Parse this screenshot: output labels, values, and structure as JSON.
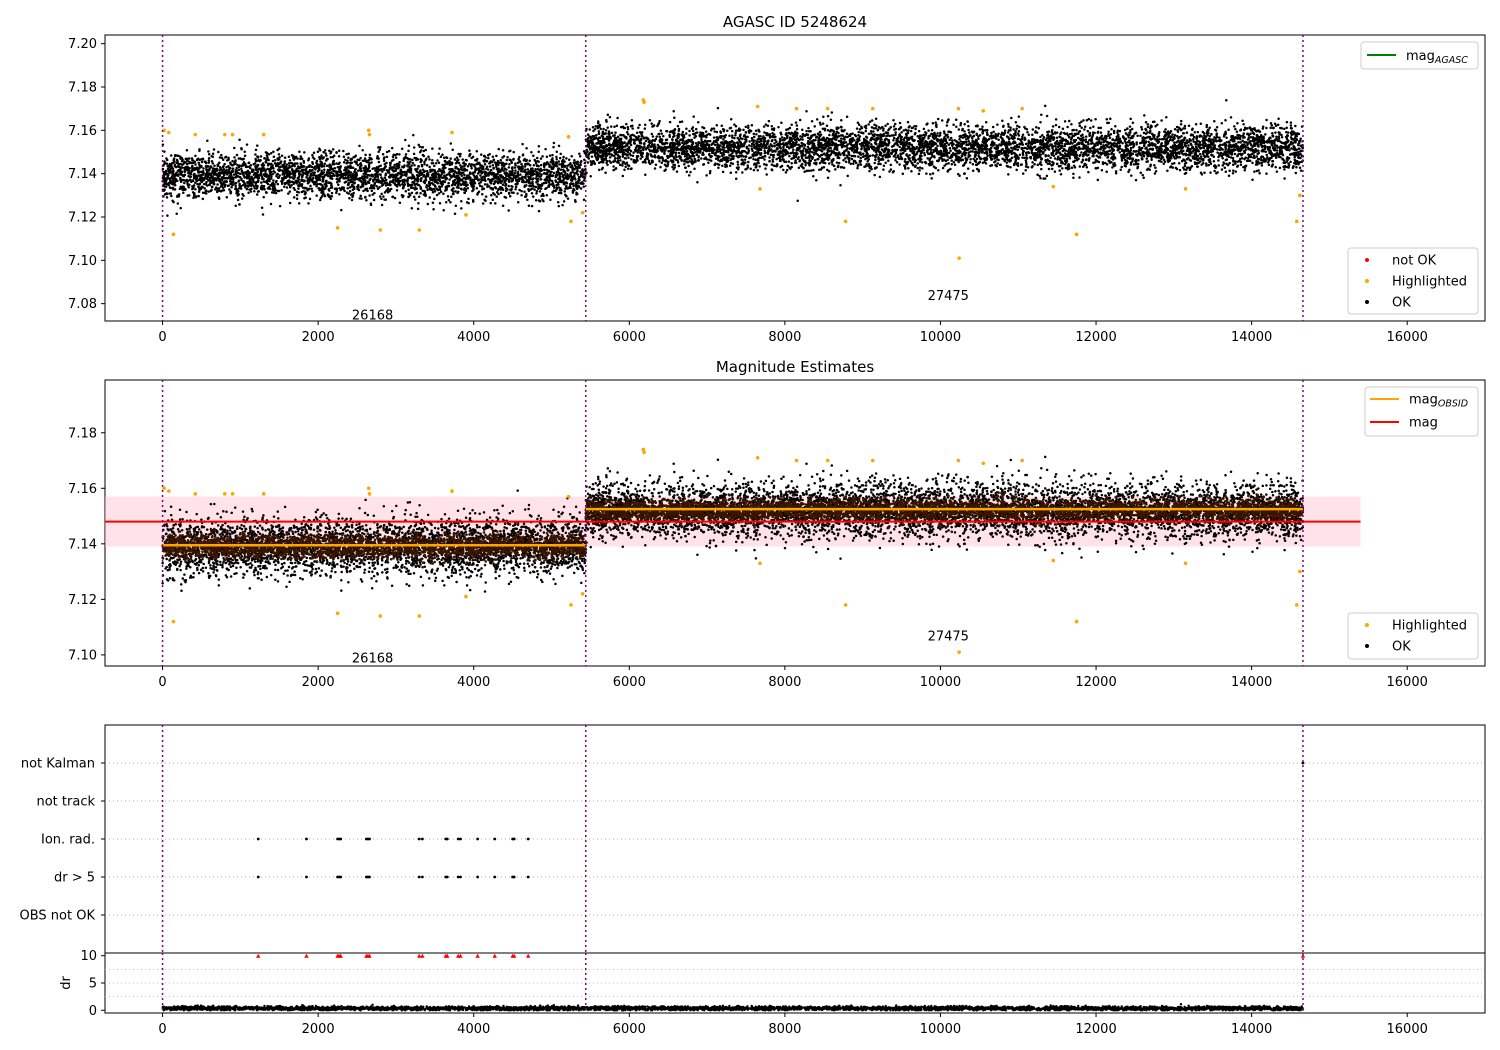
{
  "figure": {
    "title": "AGASC ID 5248624"
  },
  "colors": {
    "ok": "#000000",
    "highlighted": "#ffa500",
    "not_ok": "#ff0000",
    "agasc_line": "#008000",
    "obsid_line": "#ffa500",
    "mag_line": "#ff0000",
    "band": "#ffc0cb",
    "obs_boundary": "#800080",
    "brown_fill": "#3a1500"
  },
  "chart_data": [
    {
      "type": "scatter",
      "id": "agasc",
      "title": "AGASC ID 5248624",
      "xlim": [
        -740,
        17000
      ],
      "ylim": [
        7.072,
        7.204
      ],
      "xticks": [
        0,
        2000,
        4000,
        6000,
        8000,
        10000,
        12000,
        14000,
        16000
      ],
      "yticks": [
        7.08,
        7.1,
        7.12,
        7.14,
        7.16,
        7.18,
        7.2
      ],
      "xticklabels": [
        "0",
        "2000",
        "4000",
        "6000",
        "8000",
        "10000",
        "12000",
        "14000",
        "16000"
      ],
      "yticklabels": [
        "7.08",
        "7.10",
        "7.12",
        "7.14",
        "7.16",
        "7.18",
        "7.20"
      ],
      "obs_boundaries": [
        0,
        5440,
        14660
      ],
      "obs_labels": [
        {
          "text": "26168",
          "x": 2700,
          "y": 7.075
        },
        {
          "text": "27475",
          "x": 10100,
          "y": 7.084
        }
      ],
      "segments": [
        {
          "x0": 0,
          "x1": 5440,
          "mean": 7.139,
          "spread": 0.0062
        },
        {
          "x0": 5440,
          "x1": 14660,
          "mean": 7.152,
          "spread": 0.006
        }
      ],
      "highlighted_points": [
        [
          20,
          7.16
        ],
        [
          80,
          7.159
        ],
        [
          140,
          7.112
        ],
        [
          420,
          7.158
        ],
        [
          800,
          7.158
        ],
        [
          900,
          7.158
        ],
        [
          1300,
          7.158
        ],
        [
          2250,
          7.115
        ],
        [
          2650,
          7.16
        ],
        [
          2660,
          7.158
        ],
        [
          2800,
          7.114
        ],
        [
          3300,
          7.114
        ],
        [
          3720,
          7.159
        ],
        [
          3900,
          7.121
        ],
        [
          5220,
          7.157
        ],
        [
          5250,
          7.118
        ],
        [
          5400,
          7.122
        ],
        [
          6180,
          7.174
        ],
        [
          6190,
          7.173
        ],
        [
          7650,
          7.171
        ],
        [
          7680,
          7.133
        ],
        [
          8150,
          7.17
        ],
        [
          8550,
          7.17
        ],
        [
          8780,
          7.118
        ],
        [
          9130,
          7.17
        ],
        [
          10230,
          7.17
        ],
        [
          10240,
          7.101
        ],
        [
          10550,
          7.169
        ],
        [
          11050,
          7.17
        ],
        [
          11450,
          7.134
        ],
        [
          11750,
          7.112
        ],
        [
          13150,
          7.133
        ],
        [
          14580,
          7.118
        ],
        [
          14620,
          7.13
        ]
      ],
      "legend_lines": [
        {
          "label": "mag",
          "sub": "AGASC",
          "color_key": "agasc_line"
        }
      ],
      "legend_markers": [
        {
          "label": "not OK",
          "color_key": "not_ok"
        },
        {
          "label": "Highlighted",
          "color_key": "highlighted"
        },
        {
          "label": "OK",
          "color_key": "ok"
        }
      ]
    },
    {
      "type": "scatter",
      "id": "estimates",
      "title": "Magnitude Estimates",
      "xlim": [
        -740,
        17000
      ],
      "ylim": [
        7.096,
        7.199
      ],
      "xticks": [
        0,
        2000,
        4000,
        6000,
        8000,
        10000,
        12000,
        14000,
        16000
      ],
      "yticks": [
        7.1,
        7.12,
        7.14,
        7.16,
        7.18
      ],
      "xticklabels": [
        "0",
        "2000",
        "4000",
        "6000",
        "8000",
        "10000",
        "12000",
        "14000",
        "16000"
      ],
      "yticklabels": [
        "7.10",
        "7.12",
        "7.14",
        "7.16",
        "7.18"
      ],
      "obs_boundaries": [
        0,
        5440,
        14660
      ],
      "obs_labels": [
        {
          "text": "26168",
          "x": 2700,
          "y": 7.099
        },
        {
          "text": "27475",
          "x": 10100,
          "y": 7.107
        }
      ],
      "band": {
        "x0": -740,
        "x1": 15400,
        "y0": 7.139,
        "y1": 7.157
      },
      "mag_line": {
        "x0": -740,
        "x1": 15400,
        "y": 7.148
      },
      "obsid_lines": [
        {
          "x0": 0,
          "x1": 5440,
          "y": 7.1395
        },
        {
          "x0": 5440,
          "x1": 14660,
          "y": 7.1525
        }
      ],
      "segments": [
        {
          "x0": 0,
          "x1": 5440,
          "mean": 7.139,
          "spread": 0.0062
        },
        {
          "x0": 5440,
          "x1": 14660,
          "mean": 7.152,
          "spread": 0.006
        }
      ],
      "highlighted_points": [
        [
          20,
          7.16
        ],
        [
          80,
          7.159
        ],
        [
          140,
          7.112
        ],
        [
          420,
          7.158
        ],
        [
          800,
          7.158
        ],
        [
          900,
          7.158
        ],
        [
          1300,
          7.158
        ],
        [
          2250,
          7.115
        ],
        [
          2650,
          7.16
        ],
        [
          2660,
          7.158
        ],
        [
          2800,
          7.114
        ],
        [
          3300,
          7.114
        ],
        [
          3720,
          7.159
        ],
        [
          3900,
          7.121
        ],
        [
          5220,
          7.157
        ],
        [
          5250,
          7.118
        ],
        [
          5400,
          7.122
        ],
        [
          6180,
          7.174
        ],
        [
          6190,
          7.173
        ],
        [
          7650,
          7.171
        ],
        [
          7680,
          7.133
        ],
        [
          8150,
          7.17
        ],
        [
          8550,
          7.17
        ],
        [
          8780,
          7.118
        ],
        [
          9130,
          7.17
        ],
        [
          10230,
          7.17
        ],
        [
          10240,
          7.101
        ],
        [
          10550,
          7.169
        ],
        [
          11050,
          7.17
        ],
        [
          11450,
          7.134
        ],
        [
          11750,
          7.112
        ],
        [
          13150,
          7.133
        ],
        [
          14580,
          7.118
        ],
        [
          14620,
          7.13
        ]
      ],
      "legend_lines": [
        {
          "label": "mag",
          "sub": "OBSID",
          "color_key": "obsid_line"
        },
        {
          "label": "mag",
          "sub": "",
          "color_key": "mag_line"
        }
      ],
      "legend_markers": [
        {
          "label": "Highlighted",
          "color_key": "highlighted"
        },
        {
          "label": "OK",
          "color_key": "ok"
        }
      ]
    },
    {
      "type": "scatter",
      "id": "flags",
      "xlim": [
        -740,
        17000
      ],
      "ylim": [
        -0.5,
        5.5
      ],
      "categories": [
        "OBS not OK",
        "dr > 5",
        "Ion. rad.",
        "not track",
        "not Kalman"
      ],
      "obs_boundaries": [
        0,
        5440,
        14660
      ],
      "flag_points": {
        "dr > 5": [
          1230,
          1850,
          2250,
          2270,
          2290,
          2620,
          2640,
          2660,
          3300,
          3340,
          3640,
          3660,
          3800,
          3830,
          4050,
          4270,
          4500,
          4520,
          4700
        ],
        "Ion. rad.": [
          1230,
          1850,
          2250,
          2270,
          2290,
          2620,
          2640,
          2660,
          3300,
          3340,
          3640,
          3660,
          3800,
          3830,
          4050,
          4270,
          4500,
          4520,
          4700
        ],
        "not Kalman": [
          14660
        ]
      }
    },
    {
      "type": "scatter",
      "id": "dr",
      "ylabel": "dr",
      "xlim": [
        -740,
        17000
      ],
      "ylim": [
        -0.5,
        10.5
      ],
      "xticks": [
        0,
        2000,
        4000,
        6000,
        8000,
        10000,
        12000,
        14000,
        16000
      ],
      "xticklabels": [
        "0",
        "2000",
        "4000",
        "6000",
        "8000",
        "10000",
        "12000",
        "14000",
        "16000"
      ],
      "yticks": [
        0,
        5,
        10
      ],
      "yticklabels": [
        "0",
        "5",
        "10"
      ],
      "obs_boundaries": [
        0,
        5440,
        14660
      ],
      "baseline": {
        "mean": 0.35,
        "spread": 0.18
      },
      "clipped_points": [
        1230,
        1850,
        2250,
        2270,
        2290,
        2620,
        2640,
        2660,
        3300,
        3340,
        3640,
        3660,
        3800,
        3830,
        4050,
        4270,
        4500,
        4520,
        4700,
        14660
      ],
      "clip_value": 10
    }
  ]
}
